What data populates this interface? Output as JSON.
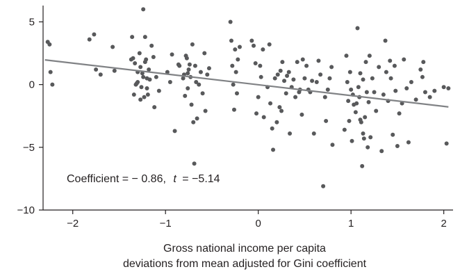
{
  "chart_data": {
    "type": "scatter",
    "xlabel_line1": "Gross national income per capita",
    "xlabel_line2": "deviations from mean adjusted for Gini coefficient",
    "ylabel": "",
    "xlim": [
      -2.32,
      2.1
    ],
    "ylim": [
      -10,
      6.3
    ],
    "x_ticks": [
      -2,
      -1,
      0,
      1,
      2
    ],
    "x_tick_labels": [
      "−2",
      "−1",
      "0",
      "1",
      "2"
    ],
    "y_ticks": [
      5,
      0,
      -5,
      -10
    ],
    "y_tick_labels": [
      "5",
      "0",
      "−5",
      "−10"
    ],
    "grid": false,
    "legend": "none",
    "annotation": {
      "prefix": "Coefficient = − 0.86,",
      "t_symbol": "t",
      "suffix": "= −5.14"
    },
    "fit_line": {
      "x": [
        -2.3,
        2.05
      ],
      "y": [
        1.97,
        -1.78
      ]
    },
    "colors": {
      "points": "#58595b",
      "fit_line": "#808285",
      "axis": "#231f20"
    },
    "points": [
      [
        -2.27,
        3.4
      ],
      [
        -2.25,
        3.2
      ],
      [
        -2.24,
        1.0
      ],
      [
        -2.22,
        0.0
      ],
      [
        -1.82,
        3.6
      ],
      [
        -1.77,
        4.0
      ],
      [
        -1.75,
        1.2
      ],
      [
        -1.7,
        0.8
      ],
      [
        -1.57,
        3.0
      ],
      [
        -1.55,
        1.1
      ],
      [
        -1.36,
        3.8
      ],
      [
        -1.35,
        2.1
      ],
      [
        -1.33,
        1.7
      ],
      [
        -1.32,
        0.0
      ],
      [
        -1.3,
        0.2
      ],
      [
        -1.28,
        2.5
      ],
      [
        -1.27,
        1.4
      ],
      [
        -1.25,
        0.9
      ],
      [
        -1.24,
        6.0
      ],
      [
        -1.22,
        3.8
      ],
      [
        -1.21,
        2.0
      ],
      [
        -1.2,
        -0.3
      ],
      [
        -1.19,
        -0.8
      ],
      [
        -1.18,
        1.2
      ],
      [
        -1.17,
        0.4
      ],
      [
        -1.15,
        3.1
      ],
      [
        -1.13,
        2.2
      ],
      [
        -1.12,
        -1.8
      ],
      [
        -1.1,
        0.6
      ],
      [
        -1.07,
        -0.5
      ],
      [
        -1.26,
        -0.2
      ],
      [
        -1.24,
        0.6
      ],
      [
        -1.22,
        1.8
      ],
      [
        -1.2,
        0.5
      ],
      [
        -1.3,
        1.0
      ],
      [
        -1.34,
        -0.8
      ],
      [
        -1.31,
        0.1
      ],
      [
        -1.27,
        -1.2
      ],
      [
        -1.23,
        -1.0
      ],
      [
        -1.37,
        2.0
      ],
      [
        -0.98,
        1.0
      ],
      [
        -0.95,
        0.2
      ],
      [
        -0.93,
        2.4
      ],
      [
        -0.9,
        -3.7
      ],
      [
        -0.86,
        1.6
      ],
      [
        -0.85,
        1.5
      ],
      [
        -0.8,
        0.8
      ],
      [
        -0.78,
        2.3
      ],
      [
        -0.77,
        2.1
      ],
      [
        -0.76,
        -0.3
      ],
      [
        -0.75,
        1.2
      ],
      [
        -0.74,
        1.6
      ],
      [
        -0.73,
        0.6
      ],
      [
        -0.72,
        -1.6
      ],
      [
        -0.71,
        3.2
      ],
      [
        -0.7,
        -3.0
      ],
      [
        -0.69,
        -6.3
      ],
      [
        -0.68,
        1.5
      ],
      [
        -0.67,
        0.2
      ],
      [
        -0.66,
        -2.7
      ],
      [
        -0.64,
        0.0
      ],
      [
        -0.62,
        1.0
      ],
      [
        -0.6,
        -0.7
      ],
      [
        -0.58,
        2.5
      ],
      [
        -0.57,
        -2.1
      ],
      [
        -0.55,
        0.8
      ],
      [
        -0.53,
        1.3
      ],
      [
        -0.76,
        0.9
      ],
      [
        -0.79,
        -0.9
      ],
      [
        -0.81,
        0.5
      ],
      [
        -0.3,
        5.0
      ],
      [
        -0.29,
        3.5
      ],
      [
        -0.28,
        1.5
      ],
      [
        -0.27,
        0.0
      ],
      [
        -0.26,
        -2.0
      ],
      [
        -0.25,
        2.8
      ],
      [
        -0.24,
        1.0
      ],
      [
        -0.23,
        -0.7
      ],
      [
        -0.22,
        2.0
      ],
      [
        -0.2,
        3.0
      ],
      [
        -0.07,
        3.5
      ],
      [
        -0.05,
        3.1
      ],
      [
        -0.03,
        1.7
      ],
      [
        -0.02,
        -2.3
      ],
      [
        0.0,
        -1.0
      ],
      [
        0.02,
        1.5
      ],
      [
        0.03,
        0.6
      ],
      [
        0.05,
        2.8
      ],
      [
        0.06,
        -2.6
      ],
      [
        0.1,
        -0.2
      ],
      [
        0.12,
        3.2
      ],
      [
        0.13,
        -1.5
      ],
      [
        0.15,
        -3.5
      ],
      [
        0.16,
        -5.2
      ],
      [
        0.18,
        0.5
      ],
      [
        0.2,
        -3.0
      ],
      [
        0.21,
        0.8
      ],
      [
        0.23,
        -1.8
      ],
      [
        0.24,
        1.1
      ],
      [
        0.25,
        -2.1
      ],
      [
        0.26,
        1.8
      ],
      [
        0.28,
        0.3
      ],
      [
        0.3,
        -0.7
      ],
      [
        0.31,
        0.7
      ],
      [
        0.33,
        1.0
      ],
      [
        0.34,
        -3.9
      ],
      [
        0.36,
        -0.2
      ],
      [
        0.38,
        0.4
      ],
      [
        0.4,
        -1.0
      ],
      [
        0.42,
        1.8
      ],
      [
        0.44,
        -0.6
      ],
      [
        0.45,
        -0.4
      ],
      [
        0.47,
        -2.4
      ],
      [
        0.48,
        2.0
      ],
      [
        0.5,
        0.5
      ],
      [
        0.52,
        1.5
      ],
      [
        0.54,
        -0.4
      ],
      [
        0.56,
        -0.6
      ],
      [
        0.58,
        0.3
      ],
      [
        0.6,
        -3.9
      ],
      [
        0.63,
        0.2
      ],
      [
        0.65,
        1.9
      ],
      [
        0.67,
        0.8
      ],
      [
        0.7,
        -8.1
      ],
      [
        0.72,
        -1.0
      ],
      [
        0.73,
        -2.9
      ],
      [
        0.75,
        -0.4
      ],
      [
        0.77,
        0.5
      ],
      [
        0.79,
        1.4
      ],
      [
        0.8,
        -4.8
      ],
      [
        0.95,
        2.3
      ],
      [
        0.96,
        0.2
      ],
      [
        0.97,
        -1.3
      ],
      [
        0.98,
        -2.9
      ],
      [
        0.99,
        1.0
      ],
      [
        1.0,
        -0.4
      ],
      [
        1.01,
        -4.5
      ],
      [
        1.03,
        -1.6
      ],
      [
        1.05,
        -2.2
      ],
      [
        1.07,
        4.5
      ],
      [
        1.08,
        -0.2
      ],
      [
        1.09,
        -1.0
      ],
      [
        1.1,
        0.9
      ],
      [
        1.11,
        -3.0
      ],
      [
        1.12,
        -6.5
      ],
      [
        1.13,
        0.4
      ],
      [
        1.14,
        -4.3
      ],
      [
        1.15,
        -2.6
      ],
      [
        1.16,
        1.8
      ],
      [
        1.17,
        -0.6
      ],
      [
        1.18,
        -5.0
      ],
      [
        1.19,
        -1.4
      ],
      [
        1.2,
        2.3
      ],
      [
        1.21,
        -4.2
      ],
      [
        1.23,
        0.5
      ],
      [
        1.25,
        -0.6
      ],
      [
        1.27,
        -2.1
      ],
      [
        1.3,
        1.4
      ],
      [
        1.33,
        -5.3
      ],
      [
        1.35,
        -0.8
      ],
      [
        1.37,
        3.5
      ],
      [
        1.38,
        1.0
      ],
      [
        1.4,
        -1.3
      ],
      [
        1.42,
        1.9
      ],
      [
        1.43,
        0.5
      ],
      [
        1.45,
        -4.0
      ],
      [
        1.47,
        1.5
      ],
      [
        1.48,
        -0.5
      ],
      [
        1.5,
        -4.9
      ],
      [
        1.52,
        -2.3
      ],
      [
        1.55,
        -1.5
      ],
      [
        1.57,
        2.0
      ],
      [
        1.6,
        -0.3
      ],
      [
        1.62,
        -4.6
      ],
      [
        1.65,
        0.2
      ],
      [
        1.7,
        -1.2
      ],
      [
        1.75,
        1.2
      ],
      [
        1.77,
        0.6
      ],
      [
        1.78,
        1.8
      ],
      [
        1.8,
        -0.6
      ],
      [
        1.85,
        -1.0
      ],
      [
        1.9,
        -0.5
      ],
      [
        2.0,
        -0.2
      ],
      [
        2.03,
        -4.7
      ],
      [
        2.05,
        -0.3
      ],
      [
        1.1,
        -2.8
      ],
      [
        1.13,
        -3.9
      ],
      [
        1.06,
        -1.5
      ],
      [
        1.02,
        -0.8
      ],
      [
        0.93,
        -3.6
      ]
    ]
  }
}
